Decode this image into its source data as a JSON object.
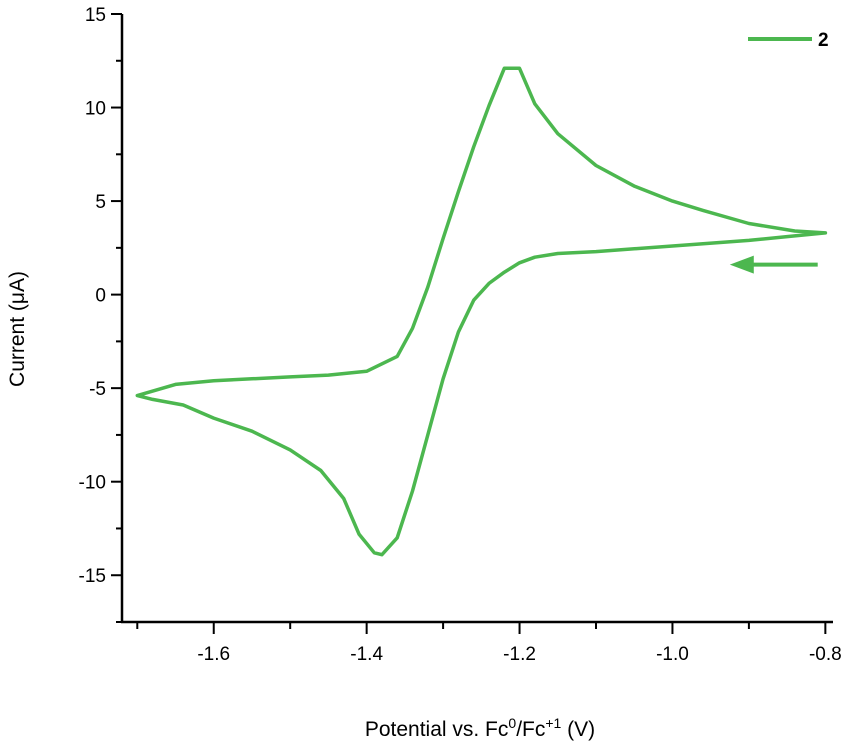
{
  "chart_data": {
    "type": "line",
    "title": "",
    "xlabel": {
      "prefix": "Potential vs. Fc",
      "sup1": "0",
      "mid": "/Fc",
      "sup2": "+1",
      "suffix": " (V)"
    },
    "ylabel": "Current (μA)",
    "xlim": [
      -1.72,
      -0.79
    ],
    "ylim": [
      -17.5,
      15
    ],
    "xticks": [
      -1.6,
      -1.4,
      -1.2,
      -1.0,
      -0.8
    ],
    "xtick_labels": [
      "-1.6",
      "-1.4",
      "-1.2",
      "-1.0",
      "-0.8"
    ],
    "yticks": [
      -15,
      -10,
      -5,
      0,
      5,
      10,
      15
    ],
    "ytick_labels": [
      "-15",
      "-10",
      "-5",
      "0",
      "5",
      "10",
      "15"
    ],
    "grid": false,
    "legend_position": "top-right",
    "series": [
      {
        "name": "2",
        "color": "#4cb74f",
        "x": [
          -0.8,
          -0.84,
          -0.9,
          -0.96,
          -1.0,
          -1.05,
          -1.1,
          -1.15,
          -1.18,
          -1.2,
          -1.22,
          -1.24,
          -1.26,
          -1.28,
          -1.3,
          -1.32,
          -1.34,
          -1.36,
          -1.4,
          -1.45,
          -1.5,
          -1.55,
          -1.6,
          -1.65,
          -1.7,
          -1.68,
          -1.64,
          -1.6,
          -1.55,
          -1.5,
          -1.46,
          -1.43,
          -1.41,
          -1.39,
          -1.38,
          -1.36,
          -1.34,
          -1.32,
          -1.3,
          -1.28,
          -1.26,
          -1.24,
          -1.22,
          -1.2,
          -1.18,
          -1.15,
          -1.1,
          -1.0,
          -0.9,
          -0.85,
          -0.8
        ],
        "y": [
          3.3,
          3.4,
          3.8,
          4.5,
          5.0,
          5.8,
          6.9,
          8.6,
          10.2,
          12.1,
          12.1,
          10.1,
          7.9,
          5.5,
          3.0,
          0.4,
          -1.8,
          -3.3,
          -4.1,
          -4.3,
          -4.4,
          -4.5,
          -4.6,
          -4.8,
          -5.4,
          -5.6,
          -5.9,
          -6.6,
          -7.3,
          -8.3,
          -9.4,
          -10.9,
          -12.8,
          -13.8,
          -13.9,
          -13.0,
          -10.5,
          -7.5,
          -4.5,
          -2.0,
          -0.3,
          0.6,
          1.2,
          1.7,
          2.0,
          2.2,
          2.3,
          2.6,
          2.9,
          3.1,
          3.3
        ]
      }
    ],
    "annotation": {
      "type": "arrow",
      "direction": "left",
      "at": {
        "x": -0.81,
        "y": 1.6
      },
      "length": 0.115
    }
  }
}
